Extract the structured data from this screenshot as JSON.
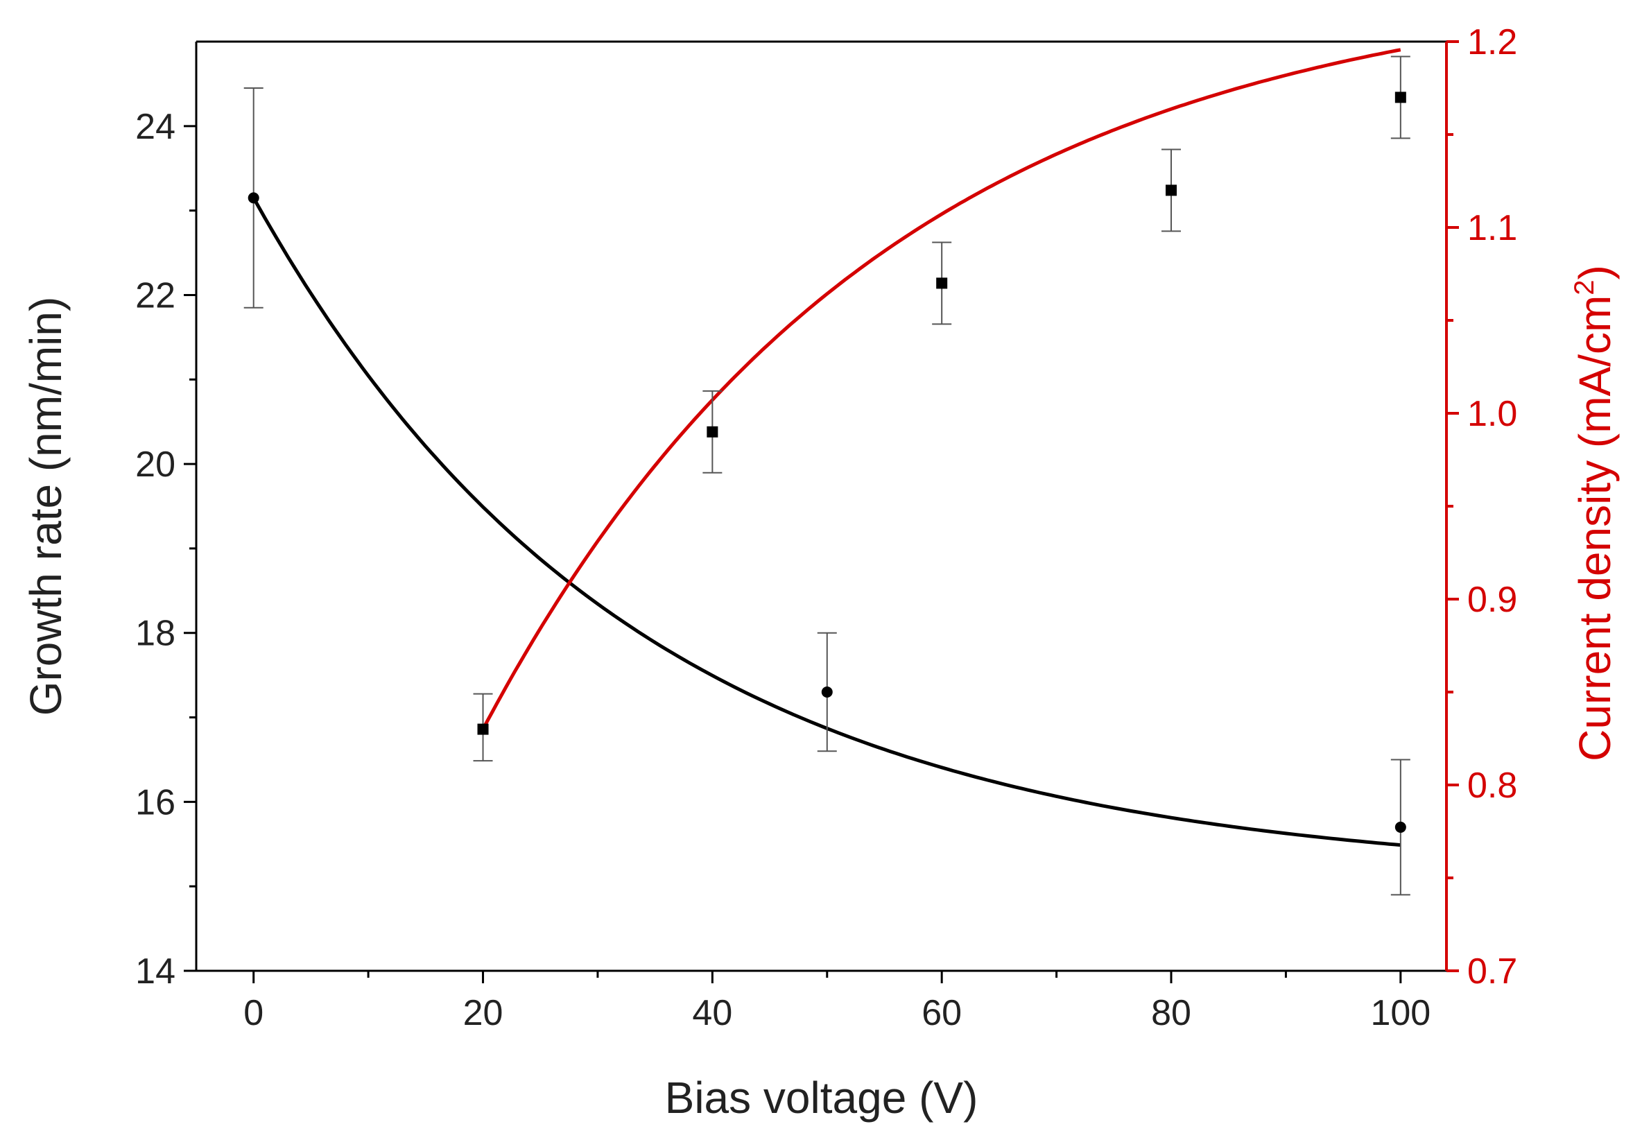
{
  "chart_data": {
    "type": "scatter",
    "title": "",
    "xlabel": "Bias voltage (V)",
    "ylabel": "Growth rate (nm/min)",
    "y2label_main": "Current density (mA/cm",
    "y2label_sup": "2",
    "y2label_end": ")",
    "xlim": [
      -5,
      104
    ],
    "ylim": [
      14,
      25
    ],
    "y2lim": [
      0.7,
      1.2
    ],
    "x_ticks": [
      0,
      20,
      40,
      60,
      80,
      100
    ],
    "x_tick_labels": [
      "0",
      "20",
      "40",
      "60",
      "80",
      "100"
    ],
    "x_minor_ticks": [
      10,
      30,
      50,
      70,
      90
    ],
    "y_ticks": [
      14,
      16,
      18,
      20,
      22,
      24
    ],
    "y_tick_labels": [
      "14",
      "16",
      "18",
      "20",
      "22",
      "24"
    ],
    "y_minor_ticks": [
      15,
      17,
      19,
      21,
      23
    ],
    "y2_ticks": [
      0.7,
      0.8,
      0.9,
      1.0,
      1.1,
      1.2
    ],
    "y2_tick_labels": [
      "0.7",
      "0.8",
      "0.9",
      "1.0",
      "1.1",
      "1.2"
    ],
    "y2_minor_ticks": [
      0.75,
      0.85,
      0.95,
      1.05,
      1.15
    ],
    "series": [
      {
        "name": "Growth rate",
        "axis": "left",
        "color": "#000000",
        "marker": "circle",
        "x": [
          0,
          50,
          100
        ],
        "y": [
          23.15,
          17.3,
          15.7
        ],
        "err_low": [
          21.85,
          16.6,
          14.9
        ],
        "err_high": [
          24.45,
          18.0,
          16.5
        ],
        "fit": {
          "form": "exponential_decay",
          "x_range": [
            0,
            100
          ],
          "y0": 23.15,
          "y_inf": 15.1,
          "tau": 33
        }
      },
      {
        "name": "Current density",
        "axis": "right",
        "color": "#d40000",
        "marker": "square",
        "x": [
          20,
          40,
          60,
          80,
          100
        ],
        "y": [
          0.83,
          0.99,
          1.07,
          1.12,
          1.17
        ],
        "err_low": [
          0.813,
          0.968,
          1.048,
          1.098,
          1.148
        ],
        "err_high": [
          0.849,
          1.012,
          1.092,
          1.142,
          1.192
        ],
        "fit": {
          "form": "exponential_saturation",
          "x_range": [
            20,
            100
          ],
          "y_start": 0.83,
          "y_inf": 1.237,
          "tau": 35
        }
      }
    ]
  }
}
